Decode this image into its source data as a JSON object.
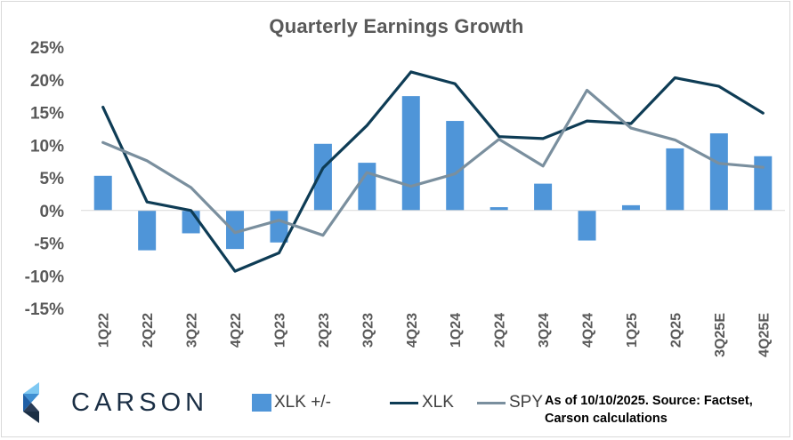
{
  "chart_data": {
    "type": "bar+line",
    "title": "Quarterly Earnings Growth",
    "categories": [
      "1Q22",
      "2Q22",
      "3Q22",
      "4Q22",
      "1Q23",
      "2Q23",
      "3Q23",
      "4Q23",
      "1Q24",
      "2Q24",
      "3Q24",
      "4Q24",
      "1Q25",
      "2Q25",
      "3Q25E",
      "4Q25E"
    ],
    "ylim": [
      -15,
      25
    ],
    "yticks": [
      "-15%",
      "-10%",
      "-5%",
      "0%",
      "5%",
      "10%",
      "15%",
      "20%",
      "25%"
    ],
    "ytick_values": [
      -15,
      -10,
      -5,
      0,
      5,
      10,
      15,
      20,
      25
    ],
    "series": [
      {
        "name": "XLK +/-",
        "kind": "bar",
        "color": "#4f95d8",
        "values": [
          5.3,
          -6.1,
          -3.5,
          -5.9,
          -4.9,
          10.2,
          7.3,
          17.5,
          13.7,
          0.5,
          4.1,
          -4.6,
          0.8,
          9.5,
          11.8,
          8.3
        ]
      },
      {
        "name": "XLK",
        "kind": "line",
        "color": "#0e3c55",
        "values": [
          15.8,
          1.3,
          0.0,
          -9.3,
          -6.5,
          6.5,
          13.0,
          21.2,
          19.4,
          11.3,
          11.0,
          13.7,
          13.3,
          20.3,
          19.0,
          14.9
        ]
      },
      {
        "name": "SPY",
        "kind": "line",
        "color": "#7a8f9e",
        "values": [
          10.4,
          7.6,
          3.5,
          -3.4,
          -1.5,
          -3.8,
          5.8,
          3.7,
          5.6,
          10.9,
          6.8,
          18.4,
          12.6,
          10.8,
          7.2,
          6.6
        ]
      }
    ],
    "grid": false,
    "legend_position": "bottom"
  },
  "legend": {
    "bar_label": "XLK +/-",
    "xlk_label": "XLK",
    "spy_label": "SPY"
  },
  "source_note": {
    "line1": "As of 10/10/2025. Source: Factset,",
    "line2": "Carson calculations"
  },
  "logo": {
    "text": "CARSON"
  }
}
